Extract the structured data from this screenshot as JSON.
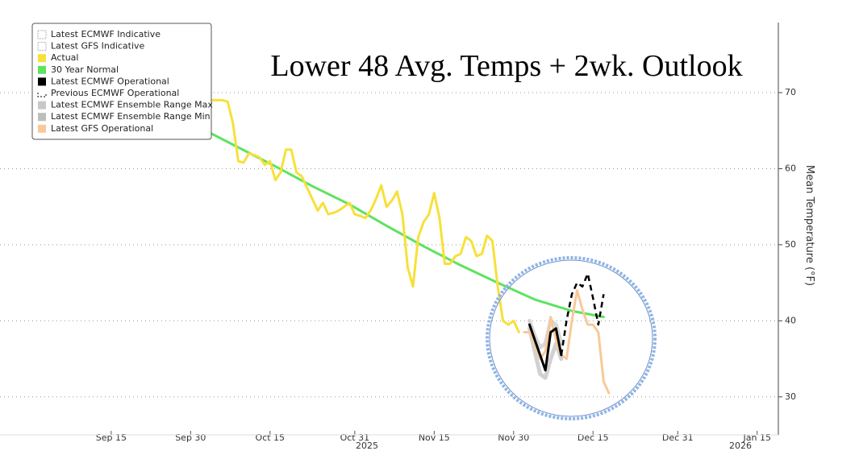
{
  "chart_data": {
    "type": "line",
    "title": "Lower 48 Avg. Temps + 2wk. Outlook",
    "y_axis_label": "Mean Temperature (°F)",
    "xlim": [
      "2025-08-25",
      "2026-01-19"
    ],
    "xticks": [
      {
        "value": "2025-09-15",
        "label": "Sep 15"
      },
      {
        "value": "2025-09-30",
        "label": "Sep 30"
      },
      {
        "value": "2025-10-15",
        "label": "Oct 15"
      },
      {
        "value": "2025-10-31",
        "label": "Oct 31"
      },
      {
        "value": "2025-11-15",
        "label": "Nov 15"
      },
      {
        "value": "2025-11-30",
        "label": "Nov 30"
      },
      {
        "value": "2025-12-15",
        "label": "Dec 15"
      },
      {
        "value": "2025-12-31",
        "label": "Dec 31"
      },
      {
        "value": "2026-01-15",
        "label": "Jan 15"
      }
    ],
    "year_labels": [
      "2025",
      "2026"
    ],
    "ylim": [
      25,
      79
    ],
    "yticks": [
      30,
      40,
      50,
      60,
      70
    ],
    "grid": true,
    "legend": "upper left",
    "series": [
      {
        "name": "Latest ECMWF Indicative",
        "color": "#999999",
        "dash": "dotted",
        "x": [],
        "values": []
      },
      {
        "name": "Latest GFS Indicative",
        "color": "#999999",
        "dash": "dotted",
        "x": [],
        "values": []
      },
      {
        "name": "Actual",
        "color": "#f7e03a",
        "x": [
          "2025-10-02",
          "2025-10-03",
          "2025-10-04",
          "2025-10-05",
          "2025-10-06",
          "2025-10-07",
          "2025-10-08",
          "2025-10-09",
          "2025-10-10",
          "2025-10-11",
          "2025-10-12",
          "2025-10-13",
          "2025-10-14",
          "2025-10-15",
          "2025-10-16",
          "2025-10-17",
          "2025-10-18",
          "2025-10-19",
          "2025-10-20",
          "2025-10-21",
          "2025-10-22",
          "2025-10-23",
          "2025-10-24",
          "2025-10-25",
          "2025-10-26",
          "2025-10-27",
          "2025-10-28",
          "2025-10-29",
          "2025-10-30",
          "2025-10-31",
          "2025-11-01",
          "2025-11-02",
          "2025-11-03",
          "2025-11-04",
          "2025-11-05",
          "2025-11-06",
          "2025-11-07",
          "2025-11-08",
          "2025-11-09",
          "2025-11-10",
          "2025-11-11",
          "2025-11-12",
          "2025-11-13",
          "2025-11-14",
          "2025-11-15",
          "2025-11-16",
          "2025-11-17",
          "2025-11-18",
          "2025-11-19",
          "2025-11-20",
          "2025-11-21",
          "2025-11-22",
          "2025-11-23",
          "2025-11-24",
          "2025-11-25",
          "2025-11-26",
          "2025-11-27",
          "2025-11-28",
          "2025-11-29",
          "2025-11-30",
          "2025-12-01"
        ],
        "values": [
          67.5,
          68.5,
          69,
          69,
          69,
          68.8,
          66,
          61,
          60.8,
          62,
          61.8,
          61.5,
          60.5,
          61,
          58.5,
          59.5,
          62.5,
          62.5,
          59.5,
          59,
          57.5,
          56,
          54.5,
          55.5,
          54,
          54.2,
          54.5,
          55,
          55.5,
          54,
          53.8,
          53.5,
          54.5,
          56,
          57.8,
          55,
          55.8,
          57,
          54,
          47,
          44.5,
          51,
          53,
          54,
          56.8,
          53.5,
          47.5,
          47.5,
          48.5,
          48.8,
          51,
          50.5,
          48.5,
          48.8,
          51.2,
          50.5,
          44.5,
          40,
          39.5,
          40,
          38.5
        ]
      },
      {
        "name": "30 Year Normal",
        "color": "#5ee35e",
        "x": [
          "2025-10-02",
          "2025-10-09",
          "2025-10-16",
          "2025-10-23",
          "2025-10-30",
          "2025-11-06",
          "2025-11-13",
          "2025-11-20",
          "2025-11-27",
          "2025-12-04",
          "2025-12-11",
          "2025-12-17"
        ],
        "values": [
          65.3,
          62.8,
          60.3,
          57.7,
          55.3,
          52.5,
          49.8,
          47.3,
          45,
          42.8,
          41.3,
          40.5
        ]
      },
      {
        "name": "Latest ECMWF Operational",
        "color": "#000000",
        "x": [
          "2025-12-03",
          "2025-12-04",
          "2025-12-05",
          "2025-12-06",
          "2025-12-07",
          "2025-12-08",
          "2025-12-09"
        ],
        "values": [
          39.5,
          37.5,
          35.5,
          33.5,
          38.5,
          39,
          35.5
        ]
      },
      {
        "name": "Previous ECMWF Operational",
        "color": "#000000",
        "dash": "dashed",
        "x": [
          "2025-12-09",
          "2025-12-10",
          "2025-12-11",
          "2025-12-12",
          "2025-12-13",
          "2025-12-14",
          "2025-12-15",
          "2025-12-16",
          "2025-12-17"
        ],
        "values": [
          35.5,
          40,
          43.5,
          45,
          44.5,
          46.2,
          43,
          39.5,
          43.5
        ]
      },
      {
        "name": "Latest ECMWF Ensemble Range Max",
        "color": "#c8c8c8",
        "x": [
          "2025-12-03",
          "2025-12-04",
          "2025-12-05",
          "2025-12-06",
          "2025-12-07",
          "2025-12-08",
          "2025-12-09"
        ],
        "values": [
          40,
          38,
          36.5,
          37,
          40,
          39.5,
          37
        ]
      },
      {
        "name": "Latest ECMWF Ensemble Range Min",
        "color": "#bdbdbd",
        "x": [
          "2025-12-03",
          "2025-12-04",
          "2025-12-05",
          "2025-12-06",
          "2025-12-07",
          "2025-12-08",
          "2025-12-09"
        ],
        "values": [
          39,
          36,
          33,
          32.5,
          35,
          37,
          35
        ]
      },
      {
        "name": "Latest GFS Operational",
        "color": "#f8c99a",
        "x": [
          "2025-12-02",
          "2025-12-03",
          "2025-12-04",
          "2025-12-05",
          "2025-12-06",
          "2025-12-07",
          "2025-12-08",
          "2025-12-09",
          "2025-12-10",
          "2025-12-11",
          "2025-12-12",
          "2025-12-13",
          "2025-12-14",
          "2025-12-15",
          "2025-12-16",
          "2025-12-17",
          "2025-12-18"
        ],
        "values": [
          38.5,
          38.5,
          37,
          35,
          36,
          40.5,
          37.5,
          35.5,
          35,
          40,
          44,
          41.5,
          39.5,
          39.5,
          38.5,
          32,
          30.5
        ]
      }
    ]
  }
}
